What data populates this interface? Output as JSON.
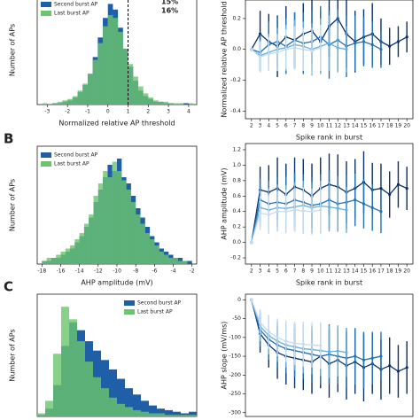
{
  "chart_data": [
    {
      "type": "histogram",
      "xlabel": "Normalized relative AP threshold",
      "ylabel": "Number of APs",
      "xlim": [
        -3.5,
        4.4
      ],
      "xticks": [
        -3,
        -2,
        -1,
        0,
        1,
        2,
        3,
        4
      ],
      "ylim": [
        0,
        78
      ],
      "vline": 1,
      "legend": "upper left",
      "annotations": [
        {
          "text": "15%",
          "color": "#3cae5a"
        },
        {
          "text": "16%",
          "color": "#3cae5a"
        }
      ],
      "bins": [
        -3.25,
        -3.0,
        -2.75,
        -2.5,
        -2.25,
        -2.0,
        -1.75,
        -1.5,
        -1.25,
        -1.0,
        -0.75,
        -0.5,
        -0.25,
        0.0,
        0.25,
        0.5,
        0.75,
        1.0,
        1.25,
        1.5,
        1.75,
        2.0,
        2.25,
        2.5,
        2.75,
        3.0,
        3.25,
        3.5,
        3.75,
        4.0,
        4.25
      ],
      "series": [
        {
          "name": "Second burst AP",
          "color": "#1f5fa8",
          "values": [
            0,
            0,
            1,
            1,
            2,
            3,
            5,
            9,
            14,
            22,
            34,
            48,
            62,
            72,
            68,
            55,
            40,
            27,
            17,
            10,
            6,
            4,
            2,
            2,
            1,
            1,
            0,
            0,
            1,
            0
          ]
        },
        {
          "name": "Last burst AP",
          "color": "#6cc56c",
          "values": [
            1,
            0,
            1,
            2,
            3,
            4,
            6,
            10,
            15,
            22,
            32,
            44,
            56,
            64,
            62,
            52,
            40,
            29,
            20,
            13,
            8,
            5,
            3,
            2,
            2,
            1,
            1,
            1,
            0,
            1
          ]
        }
      ]
    },
    {
      "type": "line",
      "xlabel": "Spike rank in burst",
      "ylabel": "Normalized relative AP threshold",
      "x": [
        2,
        3,
        4,
        5,
        6,
        7,
        8,
        9,
        10,
        11,
        12,
        13,
        14,
        15,
        16,
        17,
        18,
        19,
        20
      ],
      "xlim": [
        1.3,
        20.7
      ],
      "xticks": [
        2,
        3,
        4,
        5,
        6,
        7,
        8,
        9,
        10,
        11,
        12,
        13,
        14,
        15,
        16,
        17,
        18,
        19,
        20
      ],
      "ylim": [
        -0.45,
        0.32
      ],
      "yticks": [
        -0.4,
        -0.2,
        {
          "value": 0,
          "label": "0.0"
        },
        0.2
      ],
      "series": [
        {
          "name": null,
          "color": "#08306b",
          "values": [
            0.0,
            0.1,
            0.05,
            0.02,
            0.08,
            0.06,
            0.1,
            0.12,
            0.05,
            0.15,
            0.2,
            0.1,
            0.05,
            0.08,
            0.1,
            0.05,
            0.02,
            0.05,
            0.08
          ],
          "errors": [
            0.0,
            0.15,
            0.18,
            0.2,
            0.2,
            0.18,
            0.2,
            0.22,
            0.2,
            0.2,
            0.18,
            0.22,
            0.2,
            0.18,
            0.2,
            0.15,
            0.12,
            0.1,
            0.1
          ]
        },
        {
          "name": null,
          "color": "#2171b5",
          "values": [
            0.0,
            -0.02,
            0.03,
            0.05,
            0.02,
            0.06,
            0.04,
            0.05,
            0.08,
            0.03,
            0.06,
            0.02,
            0.04,
            0.05,
            0.03,
            0.0,
            null,
            null,
            null
          ],
          "errors": [
            0.0,
            0.12,
            0.15,
            0.16,
            0.18,
            0.18,
            0.2,
            0.2,
            0.2,
            0.22,
            0.2,
            0.2,
            0.18,
            0.16,
            0.15,
            0.12,
            null,
            null,
            null
          ]
        },
        {
          "name": null,
          "color": "#6baed6",
          "values": [
            0.0,
            -0.04,
            -0.02,
            0.0,
            0.01,
            0.03,
            0.02,
            0.0,
            0.02,
            0.04,
            0.01,
            0.0,
            null,
            null,
            null,
            null,
            null,
            null,
            null
          ],
          "errors": [
            0.0,
            0.1,
            0.12,
            0.14,
            0.15,
            0.16,
            0.16,
            0.17,
            0.18,
            0.18,
            0.16,
            0.15,
            null,
            null,
            null,
            null,
            null,
            null,
            null
          ]
        },
        {
          "name": null,
          "color": "#c6dbef",
          "values": [
            0.0,
            -0.05,
            -0.03,
            -0.02,
            0.0,
            0.01,
            0.0,
            -0.01,
            0.01,
            null,
            null,
            null,
            null,
            null,
            null,
            null,
            null,
            null,
            null
          ],
          "errors": [
            0.0,
            0.1,
            0.11,
            0.12,
            0.13,
            0.14,
            0.14,
            0.15,
            0.15,
            null,
            null,
            null,
            null,
            null,
            null,
            null,
            null,
            null,
            null
          ]
        }
      ]
    },
    {
      "type": "histogram",
      "panel_label": "B",
      "xlabel": "AHP amplitude (mV)",
      "ylabel": "Number of APs",
      "xlim": [
        -18.5,
        -1.5
      ],
      "xticks": [
        -18,
        -16,
        -14,
        -12,
        -10,
        -8,
        -6,
        -4,
        -2
      ],
      "ylim": [
        0,
        38
      ],
      "legend": "upper left",
      "bins": [
        -18,
        -17.5,
        -17,
        -16.5,
        -16,
        -15.5,
        -15,
        -14.5,
        -14,
        -13.5,
        -13,
        -12.5,
        -12,
        -11.5,
        -11,
        -10.5,
        -10,
        -9.5,
        -9,
        -8.5,
        -8,
        -7.5,
        -7,
        -6.5,
        -6,
        -5.5,
        -5,
        -4.5,
        -4,
        -3.5,
        -3,
        -2.5,
        -2
      ],
      "series": [
        {
          "name": "Second burst AP",
          "color": "#1f5fa8",
          "values": [
            1,
            1,
            2,
            2,
            3,
            4,
            5,
            7,
            9,
            12,
            15,
            20,
            24,
            28,
            32,
            30,
            34,
            28,
            26,
            22,
            18,
            15,
            12,
            9,
            7,
            5,
            4,
            3,
            2,
            2,
            1,
            1
          ]
        },
        {
          "name": "Last burst AP",
          "color": "#6cc56c",
          "values": [
            1,
            2,
            2,
            3,
            4,
            5,
            6,
            8,
            10,
            13,
            16,
            22,
            26,
            30,
            28,
            33,
            30,
            27,
            24,
            20,
            16,
            13,
            10,
            8,
            6,
            4,
            3,
            2,
            2,
            1,
            1,
            0
          ]
        }
      ]
    },
    {
      "type": "line",
      "xlabel": "Spike rank in burst",
      "ylabel": "AHP amplitude (mV)",
      "x": [
        2,
        3,
        4,
        5,
        6,
        7,
        8,
        9,
        10,
        11,
        12,
        13,
        14,
        15,
        16,
        17,
        18,
        19,
        20
      ],
      "xlim": [
        1.3,
        20.7
      ],
      "xticks": [
        2,
        3,
        4,
        5,
        6,
        7,
        8,
        9,
        10,
        11,
        12,
        13,
        14,
        15,
        16,
        17,
        18,
        19,
        20
      ],
      "ylim": [
        -0.28,
        1.28
      ],
      "yticks": [
        -0.2,
        {
          "value": 0,
          "label": "0.0"
        },
        0.2,
        0.4,
        0.6,
        0.8,
        {
          "value": 1,
          "label": "1.0"
        },
        1.2
      ],
      "series": [
        {
          "name": null,
          "color": "#08306b",
          "values": [
            0.0,
            0.68,
            0.65,
            0.7,
            0.62,
            0.72,
            0.68,
            0.6,
            0.7,
            0.75,
            0.72,
            0.65,
            0.7,
            0.78,
            0.68,
            0.7,
            0.62,
            0.75,
            0.7
          ],
          "errors": [
            0.0,
            0.3,
            0.35,
            0.4,
            0.4,
            0.38,
            0.4,
            0.42,
            0.4,
            0.4,
            0.42,
            0.4,
            0.38,
            0.4,
            0.35,
            0.32,
            0.3,
            0.3,
            0.28
          ]
        },
        {
          "name": null,
          "color": "#2171b5",
          "values": [
            0.0,
            0.55,
            0.5,
            0.52,
            0.5,
            0.55,
            0.52,
            0.48,
            0.5,
            0.55,
            0.5,
            0.52,
            0.55,
            0.5,
            0.45,
            0.4,
            null,
            null,
            null
          ],
          "errors": [
            0.0,
            0.28,
            0.3,
            0.32,
            0.35,
            0.35,
            0.36,
            0.36,
            0.38,
            0.38,
            0.36,
            0.35,
            0.34,
            0.32,
            0.3,
            0.28,
            null,
            null,
            null
          ]
        },
        {
          "name": null,
          "color": "#6baed6",
          "values": [
            0.0,
            0.45,
            0.42,
            0.45,
            0.44,
            0.46,
            0.48,
            0.45,
            0.47,
            0.46,
            0.44,
            0.42,
            null,
            null,
            null,
            null,
            null,
            null,
            null
          ],
          "errors": [
            0.0,
            0.25,
            0.28,
            0.3,
            0.3,
            0.32,
            0.32,
            0.33,
            0.33,
            0.32,
            0.3,
            0.3,
            null,
            null,
            null,
            null,
            null,
            null,
            null
          ]
        },
        {
          "name": null,
          "color": "#c6dbef",
          "values": [
            0.0,
            0.38,
            0.36,
            0.4,
            0.4,
            0.42,
            0.41,
            0.4,
            0.42,
            null,
            null,
            null,
            null,
            null,
            null,
            null,
            null,
            null,
            null
          ],
          "errors": [
            0.0,
            0.22,
            0.25,
            0.26,
            0.28,
            0.28,
            0.3,
            0.3,
            0.3,
            null,
            null,
            null,
            null,
            null,
            null,
            null,
            null,
            null,
            null
          ]
        }
      ]
    },
    {
      "type": "histogram",
      "panel_label": "C",
      "ylabel": "Number of APs",
      "xlim": [
        0,
        40
      ],
      "ylim": [
        0,
        78
      ],
      "legend": "upper right",
      "bins": [
        0,
        2,
        4,
        6,
        8,
        10,
        12,
        14,
        16,
        18,
        20,
        22,
        24,
        26,
        28,
        30,
        32,
        34,
        36,
        38,
        40
      ],
      "series": [
        {
          "name": "Second burst AP",
          "color": "#1f5fa8",
          "values": [
            1,
            5,
            20,
            45,
            60,
            55,
            48,
            42,
            36,
            30,
            24,
            18,
            14,
            10,
            7,
            5,
            4,
            3,
            2,
            3
          ]
        },
        {
          "name": "Last burst AP",
          "color": "#6cc56c",
          "values": [
            2,
            10,
            40,
            70,
            62,
            48,
            35,
            25,
            18,
            12,
            8,
            6,
            4,
            3,
            2,
            2,
            1,
            1,
            1,
            1
          ]
        }
      ]
    },
    {
      "type": "line",
      "ylabel": "AHP slope (mV/ms)",
      "x": [
        2,
        3,
        4,
        5,
        6,
        7,
        8,
        9,
        10,
        11,
        12,
        13,
        14,
        15,
        16,
        17,
        18,
        19,
        20
      ],
      "xlim": [
        1.3,
        20.7
      ],
      "ylim": [
        -310,
        15
      ],
      "yticks": [
        0,
        -50,
        -100,
        -150,
        -200,
        -250,
        -300
      ],
      "series": [
        {
          "name": null,
          "color": "#08306b",
          "values": [
            0,
            -90,
            -120,
            -140,
            -150,
            -155,
            -160,
            -165,
            -150,
            -170,
            -160,
            -175,
            -165,
            -180,
            -170,
            -185,
            -175,
            -190,
            -180
          ],
          "errors": [
            0,
            50,
            60,
            70,
            75,
            80,
            80,
            85,
            85,
            90,
            85,
            90,
            85,
            90,
            80,
            80,
            75,
            70,
            70
          ]
        },
        {
          "name": null,
          "color": "#2171b5",
          "values": [
            0,
            -80,
            -105,
            -120,
            -130,
            -135,
            -140,
            -145,
            -150,
            -145,
            -150,
            -155,
            -150,
            -160,
            -155,
            -150,
            null,
            null,
            null
          ],
          "errors": [
            0,
            45,
            55,
            60,
            65,
            70,
            70,
            75,
            75,
            80,
            75,
            80,
            75,
            75,
            70,
            65,
            null,
            null,
            null
          ]
        },
        {
          "name": null,
          "color": "#6baed6",
          "values": [
            0,
            -70,
            -95,
            -110,
            -120,
            -125,
            -130,
            -132,
            -135,
            -138,
            -136,
            -140,
            null,
            null,
            null,
            null,
            null,
            null,
            null
          ],
          "errors": [
            0,
            40,
            50,
            55,
            60,
            62,
            65,
            65,
            68,
            70,
            68,
            65,
            null,
            null,
            null,
            null,
            null,
            null,
            null
          ]
        },
        {
          "name": null,
          "color": "#c6dbef",
          "values": [
            0,
            -60,
            -85,
            -100,
            -110,
            -115,
            -118,
            -120,
            -122,
            null,
            null,
            null,
            null,
            null,
            null,
            null,
            null,
            null,
            null
          ],
          "errors": [
            0,
            35,
            45,
            50,
            55,
            58,
            60,
            60,
            62,
            null,
            null,
            null,
            null,
            null,
            null,
            null,
            null,
            null,
            null
          ]
        }
      ]
    }
  ]
}
